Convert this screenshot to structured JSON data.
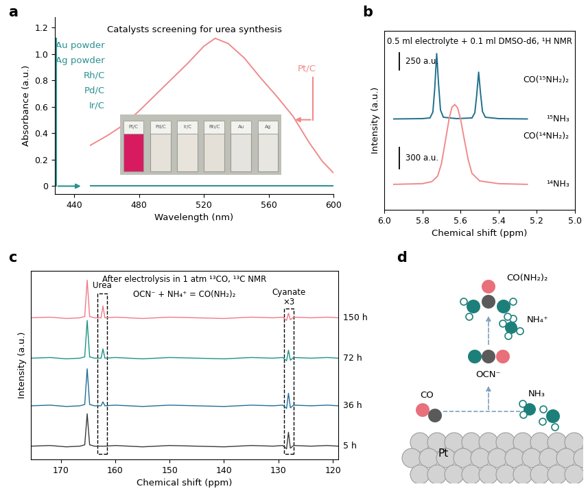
{
  "chart_data": [
    {
      "type": "line",
      "panel_label": "a",
      "title": "Catalysts screening for urea synthesis",
      "x_label": "Wavelength (nm)",
      "y_label": "Absorbance (a.u.)",
      "xlim": [
        428,
        600
      ],
      "xticks": [
        440,
        480,
        520,
        560,
        600
      ],
      "ylim": [
        -0.06,
        1.28
      ],
      "yticks": [
        0,
        {
          "value": 0.2,
          "label": "0.2"
        },
        {
          "value": 0.4,
          "label": "0.4"
        },
        {
          "value": 0.6,
          "label": "0.6"
        },
        {
          "value": 0.8,
          "label": "0.8"
        },
        {
          "value": 1.0,
          "label": "1.0"
        },
        {
          "value": 1.2,
          "label": "1.2"
        }
      ],
      "series": [
        {
          "name": "Pt/C",
          "color": "#f08a8a",
          "x": [
            450,
            460,
            470,
            480,
            490,
            500,
            510,
            520,
            527,
            535,
            545,
            555,
            565,
            575,
            585,
            593,
            600
          ],
          "values": [
            0.31,
            0.38,
            0.46,
            0.57,
            0.69,
            0.81,
            0.93,
            1.06,
            1.12,
            1.08,
            0.97,
            0.82,
            0.68,
            0.53,
            0.33,
            0.19,
            0.1
          ]
        },
        {
          "name": "Au powder",
          "color": "#2a9090",
          "x": [
            450,
            600
          ],
          "values": [
            0,
            0
          ]
        },
        {
          "name": "Ag powder",
          "color": "#2a9090",
          "x": [
            450,
            600
          ],
          "values": [
            0,
            0
          ]
        },
        {
          "name": "Rh/C",
          "color": "#2a9090",
          "x": [
            450,
            600
          ],
          "values": [
            0,
            0
          ]
        },
        {
          "name": "Pd/C",
          "color": "#2a9090",
          "x": [
            450,
            600
          ],
          "values": [
            0,
            0
          ]
        },
        {
          "name": "Ir/C",
          "color": "#2a9090",
          "x": [
            450,
            600
          ],
          "values": [
            0,
            0
          ]
        }
      ],
      "inset": {
        "labels": [
          "Pt/C",
          "Pd/C",
          "Ir/C",
          "Rh/C",
          "Au",
          "Ag"
        ],
        "colors": [
          "#d81b60",
          "#e6e2da",
          "#e8e4dc",
          "#e4e0d8",
          "#e6e4de",
          "#e8e6e0"
        ]
      }
    },
    {
      "type": "line",
      "panel_label": "b",
      "title": "0.5 ml electrolyte + 0.1 ml DMSO-d6, ¹H NMR",
      "x_label": "Chemical shift (ppm)",
      "y_label": "Intensity (a.u.)",
      "xlim": [
        6.0,
        5.0
      ],
      "xticks": [
        {
          "value": 6.0,
          "label": "6.0"
        },
        {
          "value": 5.8,
          "label": "5.8"
        },
        {
          "value": 5.6,
          "label": "5.6"
        },
        {
          "value": 5.4,
          "label": "5.4"
        },
        {
          "value": 5.2,
          "label": "5.2"
        },
        {
          "value": 5.0,
          "label": "5.0"
        }
      ],
      "ylim": [
        -370,
        2230
      ],
      "tick_labels": "x",
      "series": [
        {
          "name": "¹⁵NH₃",
          "annotation": "CO(¹⁵NH₂)₂",
          "color": "#1f6f8b",
          "scale_bar": {
            "value": 250,
            "label": "250 a.u."
          },
          "x": [
            5.95,
            5.8,
            5.76,
            5.745,
            5.735,
            5.725,
            5.715,
            5.705,
            5.69,
            5.62,
            5.54,
            5.525,
            5.515,
            5.505,
            5.495,
            5.485,
            5.47,
            5.4,
            5.25
          ],
          "values": [
            950,
            955,
            965,
            1050,
            1400,
            1900,
            1450,
            1080,
            975,
            955,
            965,
            1040,
            1300,
            1630,
            1320,
            1060,
            975,
            955,
            950
          ]
        },
        {
          "name": "¹⁴NH₃",
          "annotation": "CO(¹⁴NH₂)₂",
          "color": "#f08a8a",
          "scale_bar": {
            "value": 300,
            "label": "300 a.u."
          },
          "x": [
            5.95,
            5.8,
            5.75,
            5.72,
            5.7,
            5.68,
            5.66,
            5.645,
            5.63,
            5.615,
            5.6,
            5.58,
            5.56,
            5.54,
            5.5,
            5.4,
            5.25
          ],
          "values": [
            0,
            10,
            40,
            120,
            300,
            620,
            950,
            1120,
            1160,
            1110,
            950,
            650,
            360,
            160,
            50,
            10,
            0
          ]
        }
      ]
    },
    {
      "type": "line",
      "panel_label": "c",
      "title": "After electrolysis in 1 atm ¹³CO, ¹³C NMR",
      "subtitle": "OCN⁻ + NH₄⁺ = CO(NH₂)₂",
      "x_label": "Chemical shift (ppm)",
      "y_label": "Intensity (a.u.)",
      "xlim": [
        175.5,
        119
      ],
      "xticks": [
        170,
        160,
        150,
        140,
        130,
        120
      ],
      "ylim": [
        0,
        285
      ],
      "tick_labels": "x",
      "regions": [
        {
          "label": "Urea",
          "range": [
            163.3,
            161.5
          ]
        },
        {
          "label": "Cyanate",
          "range": [
            129.0,
            127.2
          ],
          "scale_label": "×3"
        }
      ],
      "series": [
        {
          "name": "150 h",
          "color": "#f07a86",
          "x": [
            175.5,
            172,
            169,
            166.5,
            165.6,
            165.15,
            164.7,
            163.8,
            162.6,
            162.25,
            161.9,
            160,
            155,
            150,
            145,
            140,
            135,
            131,
            129.2,
            128.5,
            128.15,
            127.8,
            127.2,
            124,
            121,
            119
          ],
          "values": [
            214,
            215,
            213,
            214,
            216,
            271,
            216,
            214,
            214,
            232,
            214,
            215,
            213,
            215,
            214,
            213,
            215,
            214,
            215,
            210,
            221,
            211,
            215,
            214,
            215,
            214
          ]
        },
        {
          "name": "72 h",
          "color": "#1b9485",
          "x": [
            175.5,
            172,
            169,
            166.5,
            165.6,
            165.15,
            164.7,
            163.8,
            162.6,
            162.25,
            161.9,
            160,
            155,
            150,
            145,
            140,
            135,
            131,
            129.2,
            128.5,
            128.15,
            127.8,
            127.2,
            124,
            121,
            119
          ],
          "values": [
            153,
            154,
            152,
            153,
            155,
            210,
            155,
            153,
            153,
            167,
            153,
            154,
            152,
            154,
            153,
            152,
            154,
            153,
            154,
            149,
            165,
            150,
            154,
            153,
            154,
            153
          ]
        },
        {
          "name": "36 h",
          "color": "#1f6e96",
          "x": [
            175.5,
            172,
            169,
            166.5,
            165.6,
            165.15,
            164.7,
            163.8,
            162.6,
            162.25,
            161.9,
            160,
            155,
            150,
            145,
            140,
            135,
            131,
            129.2,
            128.5,
            128.15,
            127.8,
            127.2,
            124,
            121,
            119
          ],
          "values": [
            81,
            82,
            80,
            81,
            83,
            137,
            83,
            81,
            81,
            87,
            81,
            82,
            80,
            82,
            81,
            80,
            82,
            81,
            82,
            77,
            100,
            78,
            82,
            81,
            82,
            81
          ]
        },
        {
          "name": "5 h",
          "color": "#3a3a3a",
          "x": [
            175.5,
            172,
            169,
            166.5,
            165.6,
            165.15,
            164.7,
            163.8,
            162.6,
            162.25,
            161.9,
            160,
            155,
            150,
            145,
            140,
            135,
            131,
            129.2,
            128.5,
            128.15,
            127.8,
            127.2,
            124,
            121,
            119
          ],
          "values": [
            20,
            21,
            19,
            20,
            22,
            69,
            22,
            20,
            20,
            20,
            20,
            21,
            19,
            21,
            20,
            19,
            21,
            20,
            21,
            16,
            41,
            17,
            21,
            20,
            21,
            20
          ]
        }
      ]
    }
  ],
  "diagram": {
    "panel_label": "d",
    "surface": "Pt",
    "species": {
      "urea": "CO(NH₂)₂",
      "ammonium": "NH₄⁺",
      "cyanate": "OCN⁻",
      "carbon_monoxide": "CO",
      "ammonia": "NH₃"
    }
  }
}
